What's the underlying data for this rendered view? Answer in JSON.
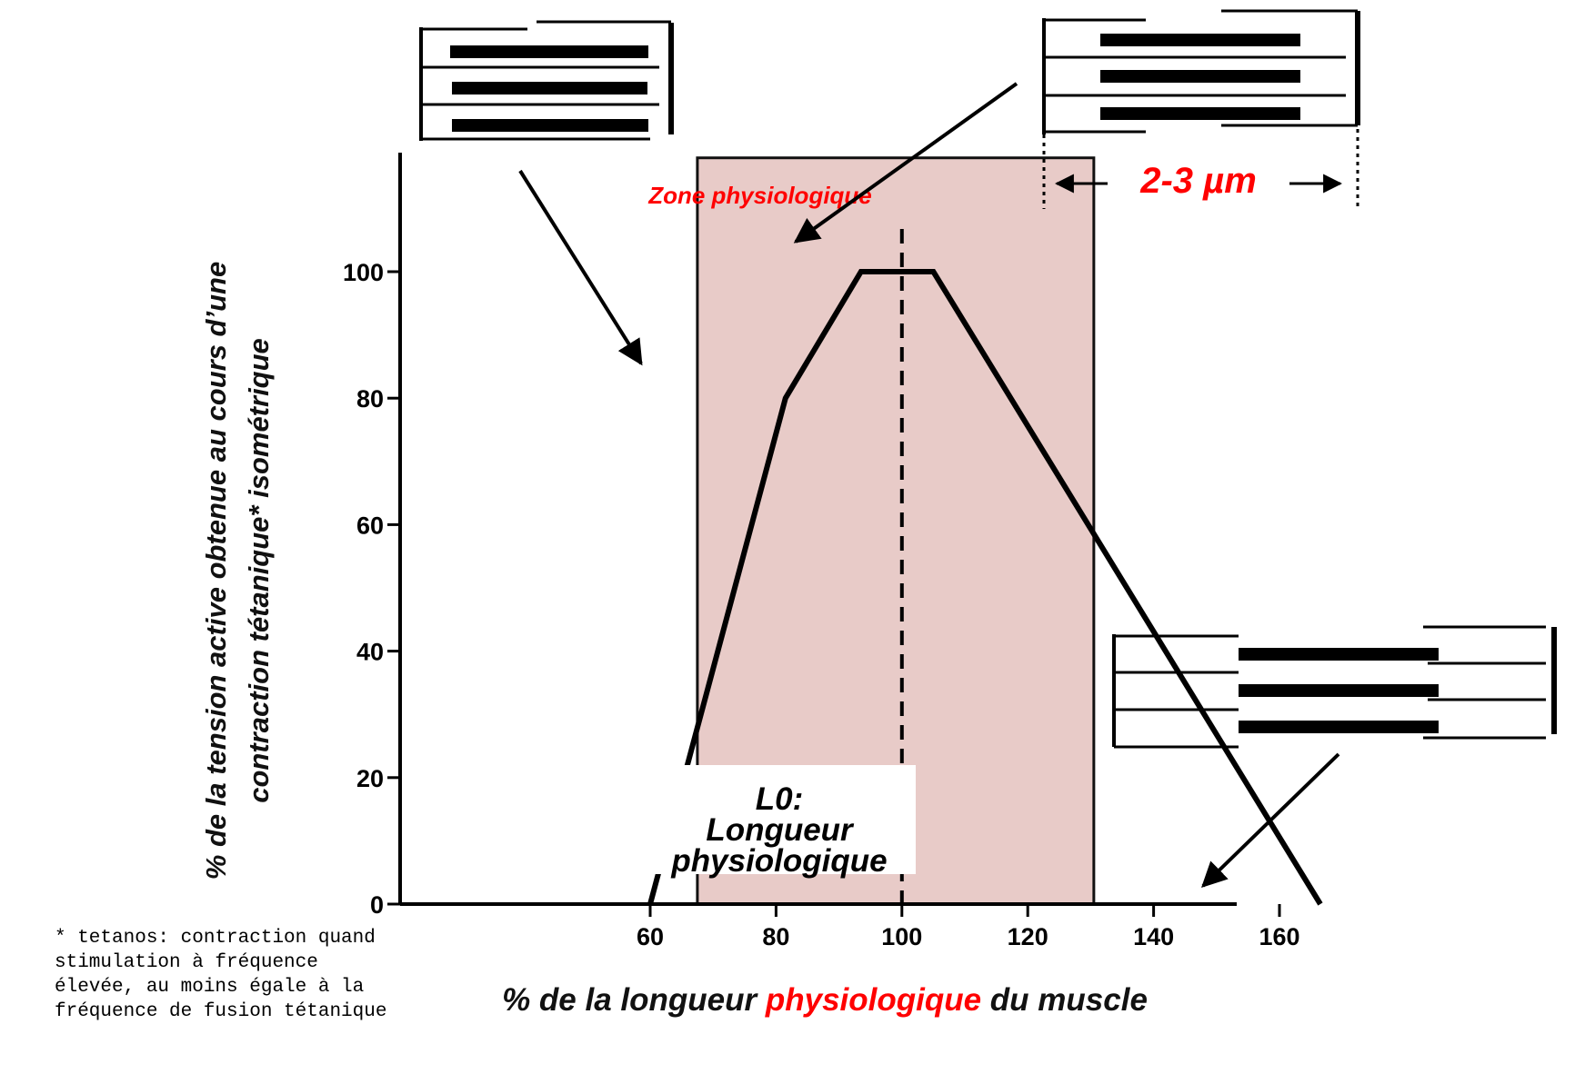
{
  "colors": {
    "zone_fill": "#e8cbc8",
    "accent_red": "#ff0000",
    "line": "#000000"
  },
  "zone_label": "Zone physiologique",
  "l0_label": [
    "L0:",
    "Longueur",
    "physiologique"
  ],
  "scale_label": "2-3  µm",
  "footnote": [
    "* tetanos: contraction quand",
    "stimulation à fréquence",
    "élevée, au moins égale à la",
    "fréquence de fusion tétanique"
  ],
  "chart_data": {
    "type": "line",
    "title": "",
    "xlabel_parts": [
      {
        "text": "% de la longueur ",
        "color": "#111111"
      },
      {
        "text": "physiologique",
        "color": "#ff0000"
      },
      {
        "text": " du muscle",
        "color": "#111111"
      }
    ],
    "ylabel": [
      "% de la tension active  obtenue au cours d’une",
      "contraction tétanique* isométrique"
    ],
    "x_ticks": [
      60,
      80,
      100,
      120,
      140,
      160
    ],
    "y_ticks": [
      0,
      20,
      40,
      60,
      80,
      100
    ],
    "xlim": [
      40,
      173
    ],
    "ylim": [
      0,
      118
    ],
    "physiological_zone": [
      67.5,
      130.5
    ],
    "reference_line_x": 100,
    "series": [
      {
        "x": [
          60,
          81.5,
          93.5,
          105,
          166.5
        ],
        "y": [
          0,
          80,
          100,
          100,
          0
        ]
      }
    ]
  }
}
